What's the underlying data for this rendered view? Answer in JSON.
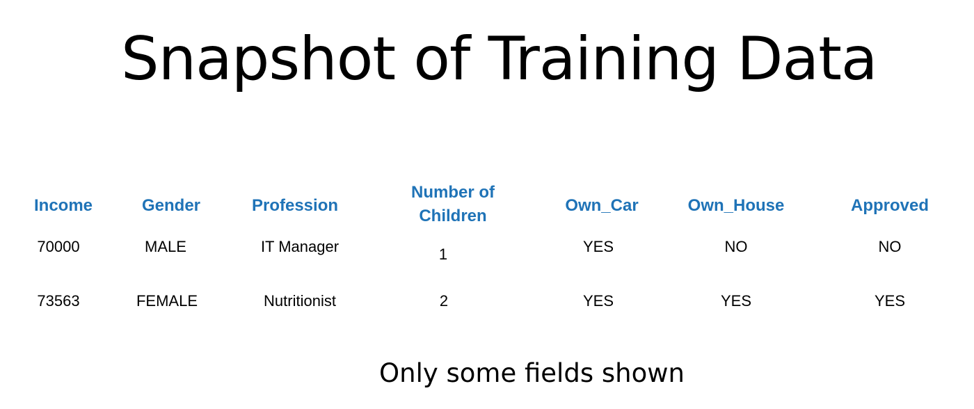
{
  "title": "Snapshot of Training Data",
  "table": {
    "headers": [
      "Income",
      "Gender",
      "Profession",
      "Number of\nChildren",
      "Own_Car",
      "Own_House",
      "Approved"
    ],
    "rows": [
      [
        "70000",
        "MALE",
        "IT Manager",
        "1",
        "YES",
        "NO",
        "NO"
      ],
      [
        "73563",
        "FEMALE",
        "Nutritionist",
        "2",
        "YES",
        "YES",
        "YES"
      ]
    ]
  },
  "footnote": "Only some fields shown",
  "colors": {
    "header": "#1f73b7",
    "text": "#000000",
    "background": "#ffffff"
  }
}
